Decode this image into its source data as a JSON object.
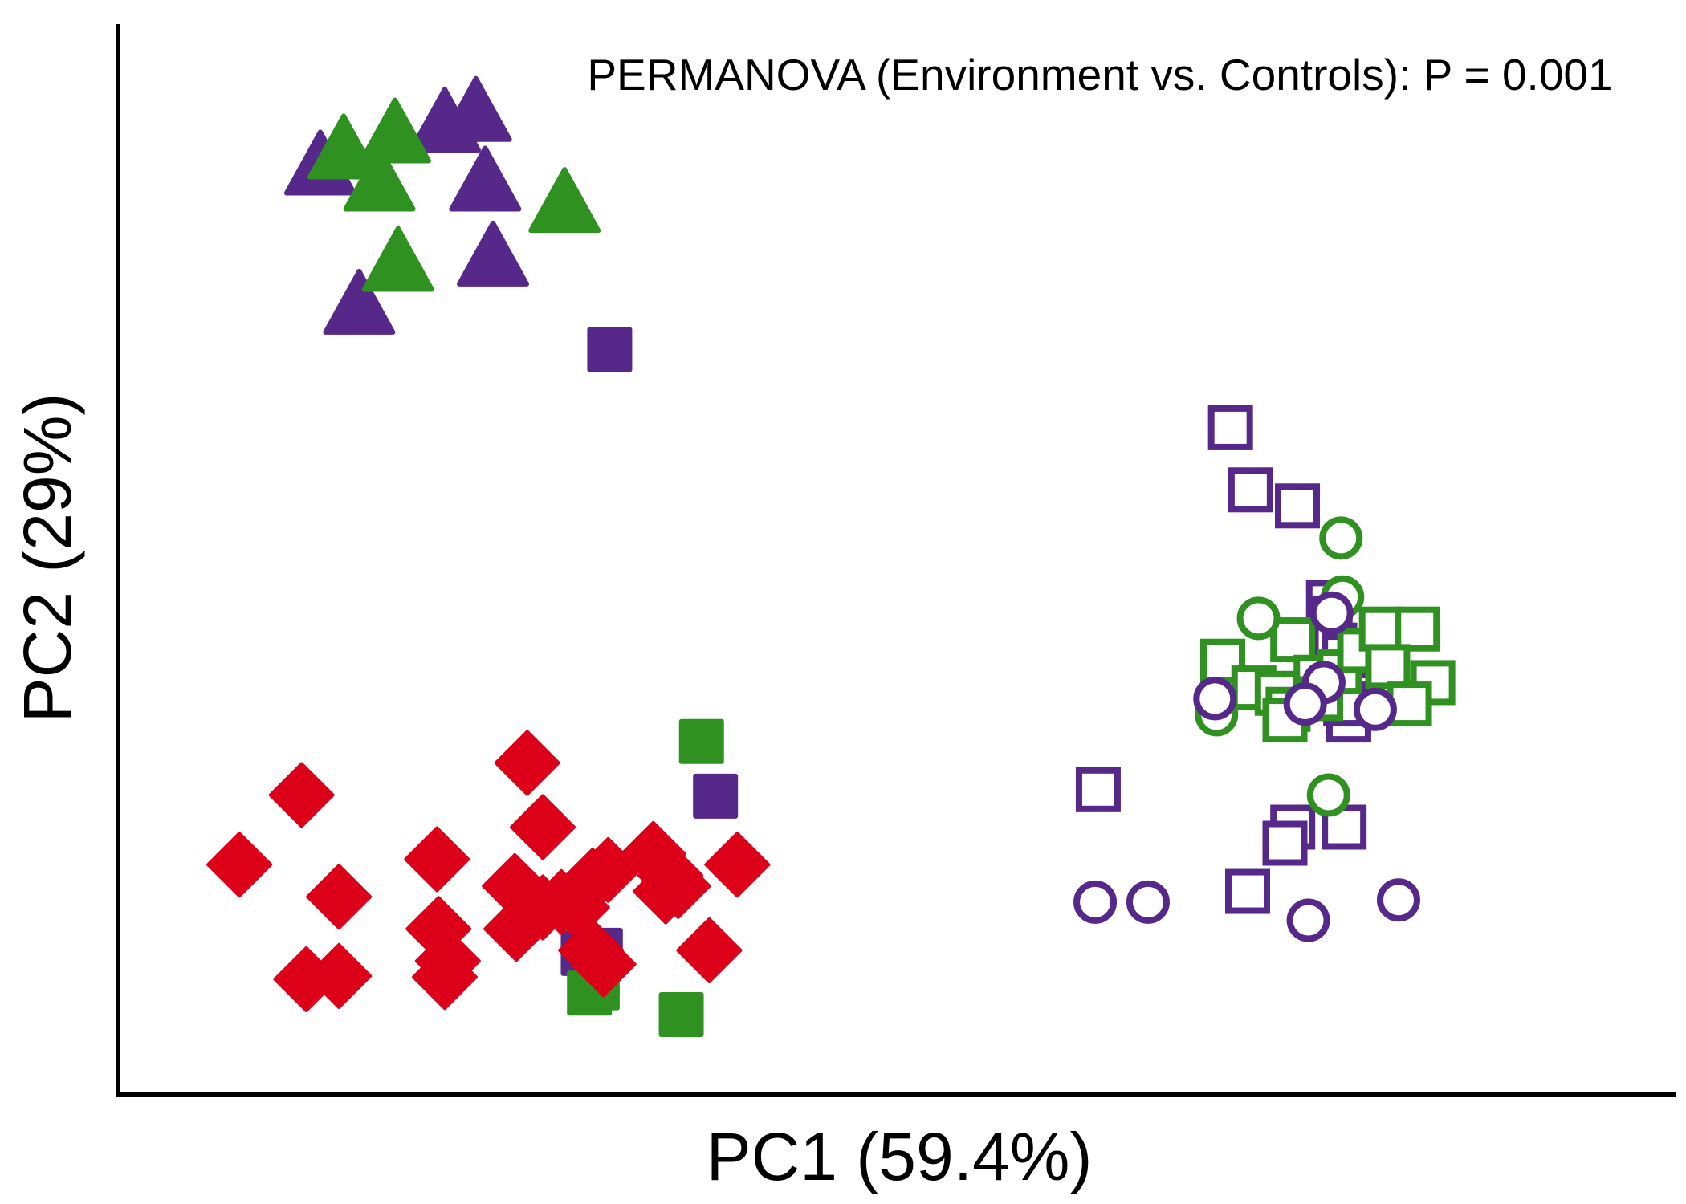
{
  "chart_data": {
    "type": "scatter",
    "title": "",
    "annotation": "PERMANOVA (Environment vs. Controls): P = 0.001",
    "xlabel": "PC1 (59.4%)",
    "ylabel": "PC2 (29%)",
    "xlim": [
      0,
      100
    ],
    "ylim": [
      0,
      100
    ],
    "ticks_shown": false,
    "grid": false,
    "legend": "none",
    "colors": {
      "purple": "#55288a",
      "green": "#2f9120",
      "red": "#dc0019"
    },
    "series": [
      {
        "color": "purple",
        "marker": "triangle-filled",
        "points": [
          [
            13.0,
            86.5
          ],
          [
            21.0,
            90.5
          ],
          [
            23.0,
            91.5
          ],
          [
            23.6,
            85.0
          ],
          [
            24.1,
            78.0
          ],
          [
            15.5,
            73.5
          ]
        ]
      },
      {
        "color": "green",
        "marker": "triangle-filled",
        "points": [
          [
            14.5,
            88.0
          ],
          [
            17.8,
            89.5
          ],
          [
            16.8,
            85.0
          ],
          [
            28.7,
            83.0
          ],
          [
            18.0,
            77.5
          ]
        ]
      },
      {
        "color": "purple",
        "marker": "square-filled",
        "points": [
          [
            31.6,
            69.6
          ],
          [
            38.4,
            27.9
          ],
          [
            31.0,
            13.5
          ],
          [
            29.9,
            13.2
          ]
        ]
      },
      {
        "color": "green",
        "marker": "square-filled",
        "points": [
          [
            37.5,
            33.0
          ],
          [
            30.3,
            9.5
          ],
          [
            36.2,
            7.5
          ],
          [
            30.8,
            10.0
          ]
        ]
      },
      {
        "color": "red",
        "marker": "diamond-filled",
        "points": [
          [
            7.8,
            21.5
          ],
          [
            11.8,
            28.0
          ],
          [
            14.2,
            18.5
          ],
          [
            12.1,
            10.8
          ],
          [
            14.2,
            11.1
          ],
          [
            20.5,
            22.0
          ],
          [
            20.6,
            15.5
          ],
          [
            21.2,
            12.5
          ],
          [
            21.0,
            11.0
          ],
          [
            26.3,
            31.0
          ],
          [
            27.3,
            25.0
          ],
          [
            25.5,
            19.5
          ],
          [
            25.6,
            15.5
          ],
          [
            27.3,
            17.5
          ],
          [
            28.5,
            18.0
          ],
          [
            29.5,
            17.5
          ],
          [
            30.5,
            20.0
          ],
          [
            31.5,
            21.0
          ],
          [
            30.4,
            13.5
          ],
          [
            31.2,
            12.2
          ],
          [
            34.4,
            22.5
          ],
          [
            35.5,
            20.5
          ],
          [
            36.0,
            19.5
          ],
          [
            35.2,
            19.0
          ],
          [
            39.8,
            21.5
          ],
          [
            38.0,
            13.5
          ]
        ]
      },
      {
        "color": "purple",
        "marker": "square-open",
        "points": [
          [
            71.5,
            62.3
          ],
          [
            72.8,
            56.5
          ],
          [
            75.8,
            55.0
          ],
          [
            63.0,
            28.5
          ],
          [
            75.5,
            25.0
          ],
          [
            75.0,
            23.5
          ],
          [
            78.8,
            25.0
          ],
          [
            72.6,
            19.0
          ],
          [
            77.8,
            46.0
          ],
          [
            77.9,
            44.5
          ],
          [
            78.2,
            42.0
          ],
          [
            78.8,
            41.0
          ],
          [
            79.1,
            35.0
          ],
          [
            78.9,
            36.5
          ]
        ]
      },
      {
        "color": "green",
        "marker": "square-open",
        "points": [
          [
            71.0,
            40.5
          ],
          [
            75.5,
            42.5
          ],
          [
            73.0,
            38.0
          ],
          [
            74.5,
            37.5
          ],
          [
            75.2,
            36.0
          ],
          [
            77.0,
            39.0
          ],
          [
            78.5,
            39.5
          ],
          [
            79.8,
            41.5
          ],
          [
            81.2,
            43.5
          ],
          [
            83.5,
            43.5
          ],
          [
            81.6,
            40.0
          ],
          [
            84.5,
            38.5
          ],
          [
            83.0,
            36.5
          ],
          [
            75.0,
            35.0
          ],
          [
            77.3,
            37.0
          ]
        ]
      },
      {
        "color": "green",
        "marker": "circle-open",
        "points": [
          [
            78.6,
            52.0
          ],
          [
            78.7,
            46.5
          ],
          [
            73.3,
            44.5
          ],
          [
            70.6,
            35.5
          ],
          [
            77.8,
            28.0
          ]
        ]
      },
      {
        "color": "purple",
        "marker": "circle-open",
        "points": [
          [
            78.0,
            45.0
          ],
          [
            77.5,
            38.5
          ],
          [
            70.5,
            37.0
          ],
          [
            76.3,
            36.5
          ],
          [
            80.8,
            36.0
          ],
          [
            62.8,
            18.0
          ],
          [
            66.2,
            18.0
          ],
          [
            76.5,
            16.3
          ],
          [
            82.3,
            18.2
          ]
        ]
      }
    ]
  }
}
